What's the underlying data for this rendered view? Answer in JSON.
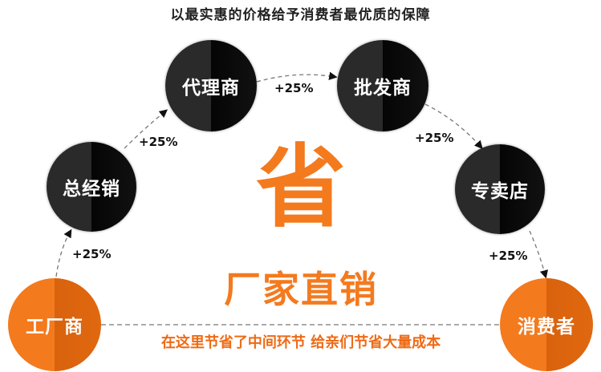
{
  "title": "以最实惠的价格给予消费者最优质的保障",
  "nodes": [
    {
      "label": "工厂商",
      "style": "orange"
    },
    {
      "label": "总经销",
      "style": "dark"
    },
    {
      "label": "代理商",
      "style": "dark"
    },
    {
      "label": "批发商",
      "style": "dark"
    },
    {
      "label": "专卖店",
      "style": "dark"
    },
    {
      "label": "消费者",
      "style": "orange"
    }
  ],
  "markups": [
    "+25%",
    "+25%",
    "+25%",
    "+25%",
    "+25%"
  ],
  "center": {
    "big_char": "省",
    "headline": "厂家直销",
    "subtitle": "在这里节省了中间环节  给亲们节省大量成本"
  },
  "colors": {
    "orange": "#f47a1e",
    "dark": "#1a1a1a",
    "subtitle": "#ef6a14"
  }
}
